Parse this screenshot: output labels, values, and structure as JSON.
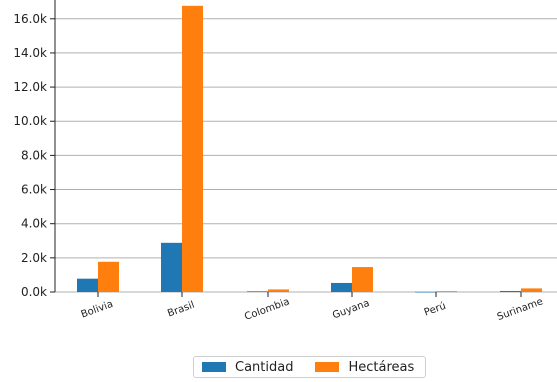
{
  "chart_data": {
    "type": "bar",
    "categories": [
      "Bolivia",
      "Brasil",
      "Colombia",
      "Guyana",
      "Perú",
      "Suriname"
    ],
    "series": [
      {
        "name": "Cantidad",
        "color": "#1f77b4",
        "values": [
          780,
          2880,
          40,
          530,
          10,
          60
        ]
      },
      {
        "name": "Hectáreas",
        "color": "#ff7f0e",
        "values": [
          1770,
          16760,
          150,
          1460,
          50,
          210
        ]
      }
    ],
    "yticks": [
      "0.0k",
      "2.0k",
      "4.0k",
      "6.0k",
      "8.0k",
      "10.0k",
      "12.0k",
      "14.0k",
      "16.0k"
    ],
    "ylim": [
      0,
      17100
    ],
    "grid": true,
    "legend_position": "bottom-center",
    "title": "",
    "xlabel": "",
    "ylabel": ""
  }
}
